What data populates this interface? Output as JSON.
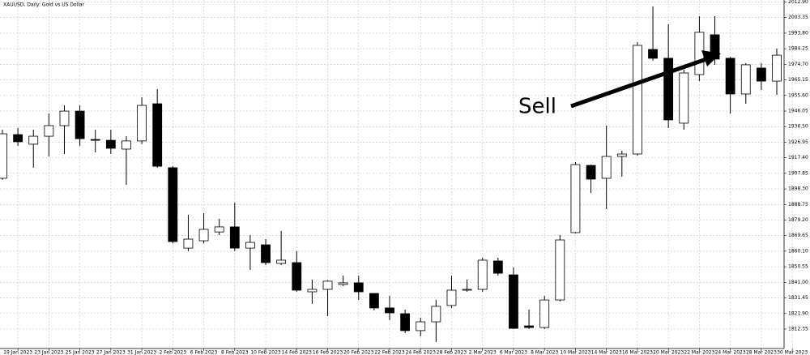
{
  "chart_data": {
    "type": "candlestick",
    "title": "XAUUSD, Daily:  Gold vs US Dollar",
    "annotation": "Sell",
    "categories": [
      null,
      "19 Jan 2023",
      null,
      "23 Jan 2023",
      null,
      "25 Jan 2023",
      null,
      "27 Jan 2023",
      null,
      "31 Jan 2023",
      null,
      "2 Feb 2023",
      null,
      "6 Feb 2023",
      null,
      "8 Feb 2023",
      null,
      "10 Feb 2023",
      null,
      "14 Feb 2023",
      null,
      "16 Feb 2023",
      null,
      "20 Feb 2023",
      null,
      "22 Feb 2023",
      null,
      "24 Feb 2023",
      null,
      "28 Feb 2023",
      null,
      "2 Mar 2023",
      null,
      "6 Mar 2023",
      null,
      "8 Mar 2023",
      null,
      "10 Mar 2023",
      null,
      "14 Mar 2023",
      null,
      "16 Mar 2023",
      null,
      "20 Mar 2023",
      null,
      "22 Mar 2023",
      null,
      "24 Mar 2023",
      null,
      "28 Mar 2023",
      null,
      "30 Mar 2023"
    ],
    "open": [
      1904.8,
      1931.6,
      1925.7,
      1930.6,
      1937.1,
      1946.0,
      1928.6,
      1928.1,
      1922.7,
      1927.7,
      1950.5,
      1911.3,
      1862.0,
      1866.5,
      1871.9,
      1875.0,
      1862.0,
      1864.0,
      1852.6,
      1853.1,
      1835.2,
      1836.7,
      1839.7,
      1840.7,
      1834.2,
      1825.3,
      1821.8,
      1811.4,
      1816.8,
      1826.8,
      1836.2,
      1836.7,
      1854.1,
      1845.6,
      1814.3,
      1813.3,
      1830.2,
      1871.5,
      1912.7,
      1904.8,
      1918.2,
      1919.7,
      1983.8,
      1978.4,
      1938.6,
      1968.4,
      1992.8,
      1978.4,
      1956.5,
      1972.4,
      1964.4,
      null
    ],
    "high": [
      1934.6,
      1935.6,
      1934.6,
      1944.5,
      1949.5,
      1949.5,
      1934.6,
      1934.6,
      1930.6,
      1954.5,
      1959.5,
      1912.2,
      1882.4,
      1883.4,
      1879.9,
      1889.9,
      1870.0,
      1867.5,
      1872.5,
      1860.1,
      1842.7,
      1842.2,
      1845.1,
      1845.1,
      1834.2,
      1832.7,
      1824.3,
      1819.3,
      1830.2,
      1845.1,
      1842.7,
      1856.1,
      1856.1,
      1850.1,
      1824.3,
      1832.7,
      1870.0,
      1914.7,
      1913.2,
      1937.1,
      1921.7,
      1988.3,
      2010.2,
      1999.2,
      1971.4,
      2004.2,
      2004.2,
      1979.3,
      1975.4,
      1975.4,
      1984.3,
      null
    ],
    "low": [
      1903.8,
      1924.7,
      1911.3,
      1918.2,
      1919.7,
      1924.7,
      1920.7,
      1919.7,
      1900.8,
      1925.7,
      1911.3,
      1865.0,
      1860.1,
      1865.0,
      1870.0,
      1860.1,
      1848.6,
      1851.6,
      1851.6,
      1835.2,
      1827.8,
      1820.3,
      1838.7,
      1830.2,
      1823.8,
      1817.8,
      1809.9,
      1807.9,
      1804.4,
      1825.3,
      1835.2,
      1835.2,
      1845.1,
      1812.4,
      1812.4,
      1812.4,
      1829.3,
      1871.0,
      1895.8,
      1885.9,
      1905.8,
      1918.7,
      1976.9,
      1935.6,
      1934.6,
      1964.4,
      1974.4,
      1944.5,
      1950.5,
      1958.9,
      1956.0,
      null
    ],
    "close": [
      1932.1,
      1927.2,
      1930.6,
      1937.1,
      1946.0,
      1929.1,
      1928.4,
      1923.2,
      1927.7,
      1949.5,
      1912.2,
      1866.0,
      1867.5,
      1873.5,
      1875.0,
      1862.0,
      1865.5,
      1853.1,
      1854.6,
      1836.2,
      1836.7,
      1841.7,
      1840.7,
      1835.2,
      1825.3,
      1822.3,
      1811.4,
      1816.8,
      1826.3,
      1836.2,
      1836.7,
      1854.6,
      1846.6,
      1812.8,
      1813.3,
      1830.2,
      1867.0,
      1913.2,
      1904.3,
      1918.2,
      1919.7,
      1986.3,
      1978.4,
      1940.6,
      1969.4,
      1994.3,
      1977.9,
      1956.5,
      1974.4,
      1964.4,
      1980.3,
      null
    ],
    "up_color": "#ffffff",
    "down_color": "#000000",
    "outline_color": "#000000",
    "ylim": [
      1800.42,
      2014.13
    ],
    "yticks": [
      1812.35,
      {
        "value": 1821.9,
        "label": "1821.90"
      },
      1831.45,
      {
        "value": 1841,
        "label": "1841.00"
      },
      1850.55,
      {
        "value": 1860.1,
        "label": "1860.10"
      },
      1869.65,
      {
        "value": 1879.2,
        "label": "1879.20"
      },
      1888.75,
      {
        "value": 1898.3,
        "label": "1898.30"
      },
      1907.85,
      {
        "value": 1917.4,
        "label": "1917.40"
      },
      1926.95,
      {
        "value": 1936.5,
        "label": "1936.50"
      },
      1946.05,
      {
        "value": 1955.6,
        "label": "1955.60"
      },
      1965.15,
      {
        "value": 1974.7,
        "label": "1974.70"
      },
      1984.25,
      {
        "value": 1993.8,
        "label": "1993.80"
      },
      2003.35,
      {
        "value": 2012.9,
        "label": "2012.90"
      }
    ],
    "grid": true
  }
}
